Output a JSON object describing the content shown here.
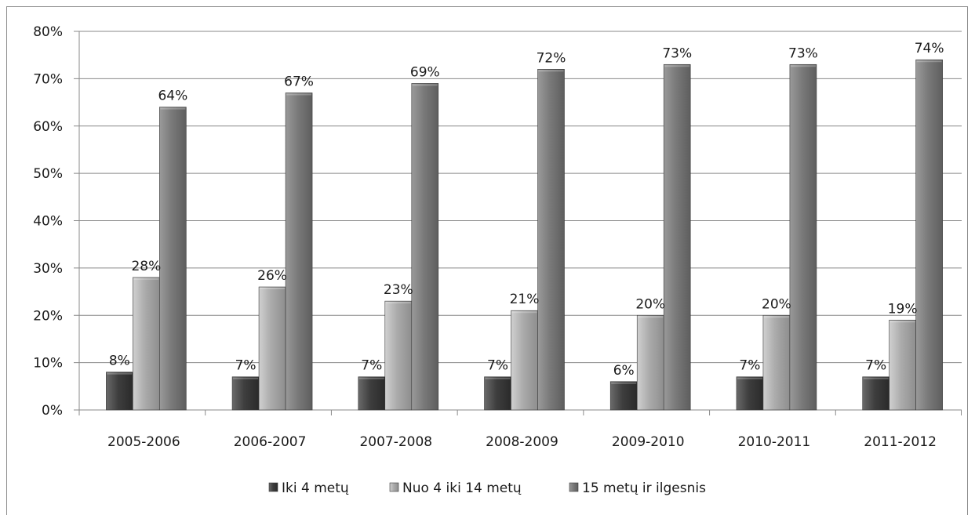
{
  "chart_data": {
    "type": "bar",
    "categories": [
      "2005-2006",
      "2006-2007",
      "2007-2008",
      "2008-2009",
      "2009-2010",
      "2010-2011",
      "2011-2012"
    ],
    "series": [
      {
        "name": "Iki 4 metų",
        "values": [
          8,
          7,
          7,
          7,
          6,
          7,
          7
        ],
        "labels": [
          "8%",
          "7%",
          "7%",
          "7%",
          "6%",
          "7%",
          "7%"
        ],
        "color": "#4a4a4a"
      },
      {
        "name": "Nuo 4 iki 14 metų",
        "values": [
          28,
          26,
          23,
          21,
          20,
          20,
          19
        ],
        "labels": [
          "28%",
          "26%",
          "23%",
          "21%",
          "20%",
          "20%",
          "19%"
        ],
        "color": "#a9a9a9"
      },
      {
        "name": "15 metų ir ilgesnis",
        "values": [
          64,
          67,
          69,
          72,
          73,
          73,
          74
        ],
        "labels": [
          "64%",
          "67%",
          "69%",
          "72%",
          "73%",
          "73%",
          "74%"
        ],
        "color": "#7a7a7a"
      }
    ],
    "y_ticks": [
      "0%",
      "10%",
      "20%",
      "30%",
      "40%",
      "50%",
      "60%",
      "70%",
      "80%"
    ],
    "ylim": [
      0,
      80
    ],
    "grid": true,
    "legend_position": "bottom"
  }
}
